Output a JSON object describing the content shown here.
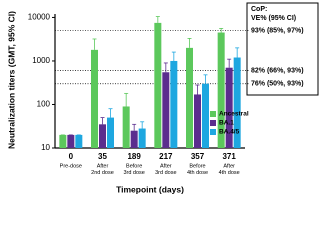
{
  "chart_data": {
    "type": "bar",
    "log_scale": true,
    "y_label": "Neutralization titers (GMT, 95% CI)",
    "x_label": "Timepoint (days)",
    "annotation_title": "CoP:",
    "annotation_subtitle": "VE% (95% CI)",
    "categories": [
      "0",
      "35",
      "189",
      "217",
      "357",
      "371"
    ],
    "category_sublabels": [
      [
        "Pre-dose"
      ],
      [
        "After",
        "2nd dose"
      ],
      [
        "Before",
        "3rd dose"
      ],
      [
        "After",
        "3rd dose"
      ],
      [
        "Before",
        "4th dose"
      ],
      [
        "After",
        "4th dose"
      ]
    ],
    "series": [
      {
        "name": "Ancestral",
        "color": "#5cc85c",
        "values": [
          20,
          1800,
          90,
          7500,
          2000,
          4500
        ],
        "upper": [
          20,
          3200,
          180,
          10500,
          3300,
          5600
        ]
      },
      {
        "name": "BA.1",
        "color": "#5b2d8e",
        "values": [
          20,
          35,
          25,
          550,
          170,
          700
        ],
        "upper": [
          20,
          50,
          35,
          900,
          280,
          1100
        ]
      },
      {
        "name": "BA.4/5",
        "color": "#1ea7e0",
        "values": [
          20,
          50,
          28,
          1000,
          300,
          1200
        ],
        "upper": [
          20,
          80,
          40,
          1600,
          480,
          2000
        ]
      }
    ],
    "reference_lines": [
      {
        "value": 5000,
        "label": "93% (85%, 97%)"
      },
      {
        "value": 600,
        "label": "82% (66%, 93%)"
      },
      {
        "value": 300,
        "label": "76% (50%, 93%)"
      }
    ],
    "ylim": [
      10,
      12000
    ],
    "yticks": [
      10,
      100,
      1000,
      10000
    ],
    "legend": "lower-right"
  }
}
